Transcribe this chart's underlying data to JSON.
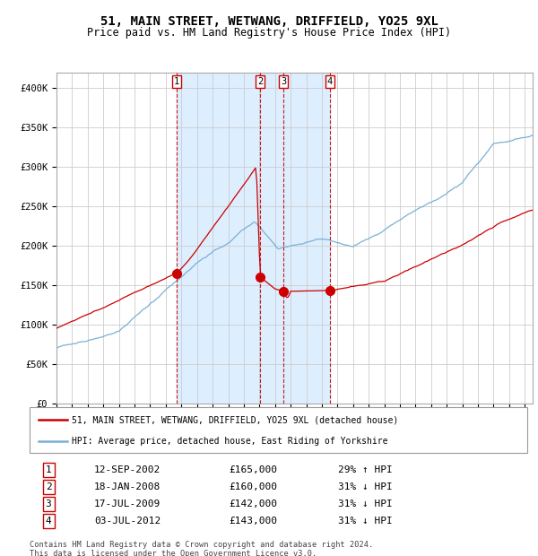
{
  "title": "51, MAIN STREET, WETWANG, DRIFFIELD, YO25 9XL",
  "subtitle": "Price paid vs. HM Land Registry's House Price Index (HPI)",
  "title_fontsize": 10,
  "subtitle_fontsize": 8.5,
  "background_color": "#ffffff",
  "plot_bg_color": "#ffffff",
  "grid_color": "#cccccc",
  "hpi_line_color": "#7ab0d4",
  "price_line_color": "#cc0000",
  "shade_color": "#ddeeff",
  "ylim": [
    0,
    420000
  ],
  "yticks": [
    0,
    50000,
    100000,
    150000,
    200000,
    250000,
    300000,
    350000,
    400000
  ],
  "ytick_labels": [
    "£0",
    "£50K",
    "£100K",
    "£150K",
    "£200K",
    "£250K",
    "£300K",
    "£350K",
    "£400K"
  ],
  "legend_price_label": "51, MAIN STREET, WETWANG, DRIFFIELD, YO25 9XL (detached house)",
  "legend_hpi_label": "HPI: Average price, detached house, East Riding of Yorkshire",
  "footnote": "Contains HM Land Registry data © Crown copyright and database right 2024.\nThis data is licensed under the Open Government Licence v3.0.",
  "transactions": [
    {
      "num": 1,
      "date_label": "12-SEP-2002",
      "price": 165000,
      "hpi_pct": "29%",
      "direction": "↑",
      "x_year": 2002.7
    },
    {
      "num": 2,
      "date_label": "18-JAN-2008",
      "price": 160000,
      "hpi_pct": "31%",
      "direction": "↓",
      "x_year": 2008.05
    },
    {
      "num": 3,
      "date_label": "17-JUL-2009",
      "price": 142000,
      "hpi_pct": "31%",
      "direction": "↓",
      "x_year": 2009.55
    },
    {
      "num": 4,
      "date_label": "03-JUL-2012",
      "price": 143000,
      "hpi_pct": "31%",
      "direction": "↓",
      "x_year": 2012.5
    }
  ],
  "xmin": 1995,
  "xmax": 2025.5
}
